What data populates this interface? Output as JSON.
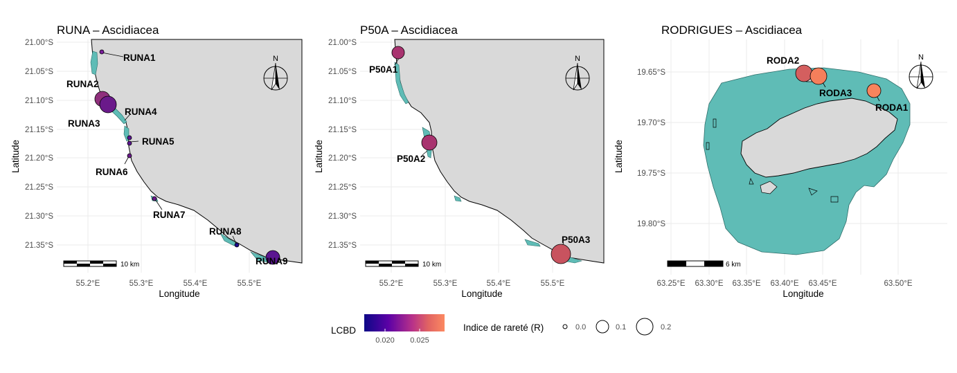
{
  "colors": {
    "land": "#d9d9d9",
    "reef": "#5fbcb6",
    "grid": "#ebebeb",
    "low": "#0d0887",
    "high": "#fc8961"
  },
  "panels": [
    {
      "key": "runa",
      "title": "RUNA – Ascidiacea",
      "xlabel": "Longitude",
      "ylabel": "Latitude",
      "yticks": [
        "21.00°S",
        "21.05°S",
        "21.10°S",
        "21.15°S",
        "21.20°S",
        "21.25°S",
        "21.30°S",
        "21.35°S"
      ],
      "xticks": [
        "55.2°E",
        "55.3°E",
        "55.4°E",
        "55.5°E"
      ],
      "scale": "10 km",
      "north": "N",
      "sites": [
        {
          "label": "RUNA1",
          "lcbd": 0.0215,
          "r": 0.01
        },
        {
          "label": "RUNA2",
          "lcbd": 0.025,
          "r": 0.09
        },
        {
          "label": "RUNA3",
          "lcbd": 0.023,
          "r": 0.12
        },
        {
          "label": "RUNA4",
          "lcbd": 0.0225,
          "r": 0.01
        },
        {
          "label": "RUNA5",
          "lcbd": 0.0225,
          "r": 0.01
        },
        {
          "label": "RUNA6",
          "lcbd": 0.023,
          "r": 0.01
        },
        {
          "label": "RUNA7",
          "lcbd": 0.023,
          "r": 0.01
        },
        {
          "label": "RUNA8",
          "lcbd": 0.0185,
          "r": 0.01
        },
        {
          "label": "RUNA9",
          "lcbd": 0.0225,
          "r": 0.09
        }
      ]
    },
    {
      "key": "p50a",
      "title": "P50A – Ascidiacea",
      "xlabel": "Longitude",
      "ylabel": "Latitude",
      "yticks": [
        "21.00°S",
        "21.05°S",
        "21.10°S",
        "21.15°S",
        "21.20°S",
        "21.25°S",
        "21.30°S",
        "21.35°S"
      ],
      "xticks": [
        "55.2°E",
        "55.3°E",
        "55.4°E",
        "55.5°E"
      ],
      "scale": "10 km",
      "north": "N",
      "sites": [
        {
          "label": "P50A1",
          "lcbd": 0.024,
          "r": 0.04
        },
        {
          "label": "P50A2",
          "lcbd": 0.024,
          "r": 0.06
        },
        {
          "label": "P50A3",
          "lcbd": 0.026,
          "r": 0.18
        }
      ]
    },
    {
      "key": "rod",
      "title": "RODRIGUES – Ascidiacea",
      "xlabel": "Longitude",
      "ylabel": "Latitude",
      "yticks": [
        "19.65°S",
        "19.70°S",
        "19.75°S",
        "19.80°S"
      ],
      "xticks": [
        "63.25°E",
        "63.30°E",
        "63.35°E",
        "63.40°E",
        "63.45°E",
        "63.50°E"
      ],
      "scale": "6 km",
      "north": "N",
      "sites": [
        {
          "label": "RODA2",
          "lcbd": 0.026,
          "r": 0.08
        },
        {
          "label": "RODA3",
          "lcbd": 0.028,
          "r": 0.08
        },
        {
          "label": "RODA1",
          "lcbd": 0.0285,
          "r": 0.05
        }
      ]
    }
  ],
  "legend": {
    "lcbd_title": "LCBD",
    "lcbd_ticks": [
      "0.020",
      "0.025"
    ],
    "r_title": "Indice de rareté (R)",
    "r_ticks": [
      "0.0",
      "0.1",
      "0.2"
    ]
  }
}
